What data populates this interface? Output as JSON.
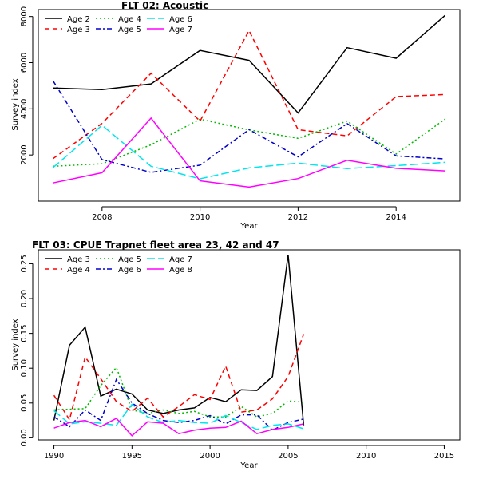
{
  "chart_data": [
    {
      "type": "line",
      "title": "FLT 02: Acoustic",
      "xlabel": "Year",
      "ylabel": "Survey index",
      "xlim": [
        2006.7,
        2015.3
      ],
      "ylim": [
        0,
        8300
      ],
      "xticks": [
        "2008",
        "2010",
        "2012",
        "2014"
      ],
      "xtick_values": [
        2008,
        2010,
        2012,
        2014
      ],
      "yticks": [
        "2000",
        "4000",
        "6000",
        "8000"
      ],
      "ytick_values": [
        2000,
        4000,
        6000,
        8000
      ],
      "grid": false,
      "legend_position": "top-left",
      "legend_columns": 3,
      "x": [
        2007,
        2008,
        2009,
        2010,
        2011,
        2012,
        2013,
        2014,
        2015
      ],
      "series": [
        {
          "name": "Age 2",
          "color": "#000000",
          "dash": "solid",
          "values": [
            4900,
            4830,
            5080,
            6530,
            6100,
            3820,
            6650,
            6190,
            8050
          ]
        },
        {
          "name": "Age 3",
          "color": "#ff0000",
          "dash": "dashed",
          "values": [
            1840,
            3370,
            5540,
            3470,
            7390,
            3100,
            2830,
            4530,
            4620
          ]
        },
        {
          "name": "Age 4",
          "color": "#00bb00",
          "dash": "dotted",
          "values": [
            1510,
            1620,
            2440,
            3550,
            3090,
            2720,
            3470,
            2040,
            3560
          ]
        },
        {
          "name": "Age 5",
          "color": "#0000cc",
          "dash": "dashdot",
          "values": [
            5220,
            1800,
            1250,
            1560,
            3100,
            1920,
            3360,
            1960,
            1830
          ]
        },
        {
          "name": "Age 6",
          "color": "#00e5ee",
          "dash": "longdash",
          "values": [
            1450,
            3290,
            1510,
            970,
            1440,
            1650,
            1410,
            1540,
            1680
          ]
        },
        {
          "name": "Age 7",
          "color": "#ff00ff",
          "dash": "solid",
          "values": [
            790,
            1230,
            3600,
            880,
            610,
            980,
            1770,
            1420,
            1310
          ]
        }
      ]
    },
    {
      "type": "line",
      "title": "FLT 03: CPUE Trapnet fleet area 23, 42 and 47",
      "xlabel": "Year",
      "ylabel": "Survey index",
      "xlim": [
        1989,
        2016
      ],
      "ylim": [
        -0.003,
        0.27
      ],
      "xticks": [
        "1990",
        "1995",
        "2000",
        "2005",
        "2010",
        "2015"
      ],
      "xtick_values": [
        1990,
        1995,
        2000,
        2005,
        2010,
        2015
      ],
      "yticks": [
        "0.00",
        "0.05",
        "0.10",
        "0.15",
        "0.20",
        "0.25"
      ],
      "ytick_values": [
        0,
        0.05,
        0.1,
        0.15,
        0.2,
        0.25
      ],
      "grid": false,
      "legend_position": "top-left",
      "legend_columns": 3,
      "x": [
        1990,
        1991,
        1992,
        1993,
        1994,
        1995,
        1996,
        1997,
        1998,
        1999,
        2000,
        2001,
        2002,
        2003,
        2004,
        2005,
        2006
      ],
      "series": [
        {
          "name": "Age 3",
          "color": "#000000",
          "dash": "solid",
          "values": [
            0.025,
            0.133,
            0.159,
            0.06,
            0.07,
            0.063,
            0.04,
            0.035,
            0.04,
            0.043,
            0.058,
            0.052,
            0.069,
            0.068,
            0.088,
            0.263,
            0.018
          ]
        },
        {
          "name": "Age 4",
          "color": "#ff0000",
          "dash": "dashed",
          "values": [
            0.061,
            0.026,
            0.116,
            0.085,
            0.052,
            0.038,
            0.057,
            0.03,
            0.045,
            0.062,
            0.055,
            0.103,
            0.037,
            0.04,
            0.056,
            0.088,
            0.149
          ]
        },
        {
          "name": "Age 5",
          "color": "#00bb00",
          "dash": "dotted",
          "values": [
            0.04,
            0.041,
            0.042,
            0.075,
            0.101,
            0.04,
            0.035,
            0.04,
            0.035,
            0.038,
            0.03,
            0.03,
            0.045,
            0.03,
            0.035,
            0.053,
            0.051
          ]
        },
        {
          "name": "Age 6",
          "color": "#0000cc",
          "dash": "dashdot",
          "values": [
            0.03,
            0.016,
            0.04,
            0.025,
            0.084,
            0.05,
            0.035,
            0.025,
            0.022,
            0.025,
            0.032,
            0.02,
            0.033,
            0.033,
            0.011,
            0.022,
            0.027
          ]
        },
        {
          "name": "Age 7",
          "color": "#00e5ee",
          "dash": "longdash",
          "values": [
            0.039,
            0.02,
            0.023,
            0.021,
            0.018,
            0.048,
            0.03,
            0.022,
            0.025,
            0.022,
            0.021,
            0.032,
            0.022,
            0.012,
            0.018,
            0.02,
            0.013
          ]
        },
        {
          "name": "Age 8",
          "color": "#ff00ff",
          "dash": "solid",
          "values": [
            0.014,
            0.022,
            0.025,
            0.016,
            0.028,
            0.003,
            0.023,
            0.021,
            0.006,
            0.011,
            0.014,
            0.015,
            0.024,
            0.006,
            0.012,
            0.015,
            0.02
          ]
        }
      ]
    }
  ]
}
